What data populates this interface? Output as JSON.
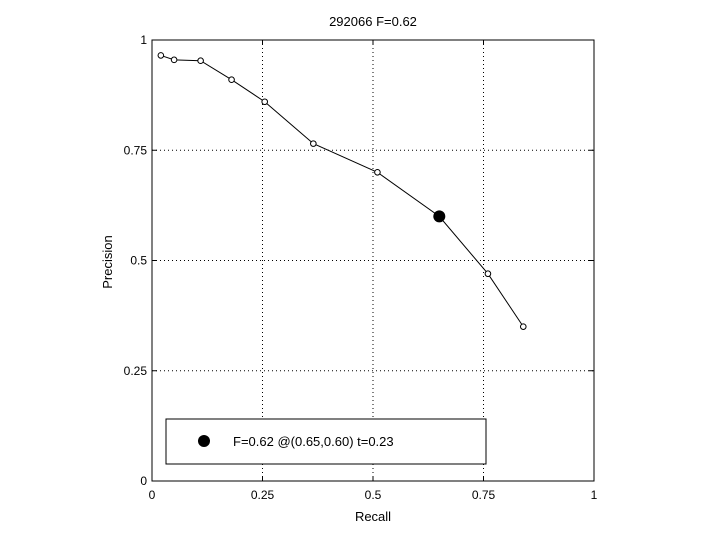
{
  "chart_data": {
    "type": "line",
    "title": "292066 F=0.62",
    "xlabel": "Recall",
    "ylabel": "Precision",
    "xlim": [
      0,
      1
    ],
    "ylim": [
      0,
      1
    ],
    "xticks": [
      0,
      0.25,
      0.5,
      0.75,
      1
    ],
    "yticks": [
      0,
      0.25,
      0.5,
      0.75,
      1
    ],
    "xtick_labels": [
      "0",
      "0.25",
      "0.5",
      "0.75",
      "1"
    ],
    "ytick_labels": [
      "0",
      "0.25",
      "0.5",
      "0.75",
      "1"
    ],
    "grid": true,
    "series": [
      {
        "marker": "open-circle",
        "x": [
          0.02,
          0.05,
          0.11,
          0.18,
          0.255,
          0.365,
          0.51,
          0.65,
          0.76,
          0.84
        ],
        "y": [
          0.965,
          0.955,
          0.953,
          0.91,
          0.86,
          0.765,
          0.7,
          0.6,
          0.47,
          0.35
        ]
      }
    ],
    "highlight_point": {
      "x": 0.65,
      "y": 0.6,
      "marker": "filled-circle"
    },
    "legend": {
      "position": "bottom-left",
      "label": "F=0.62 @(0.65,0.60) t=0.23"
    }
  }
}
